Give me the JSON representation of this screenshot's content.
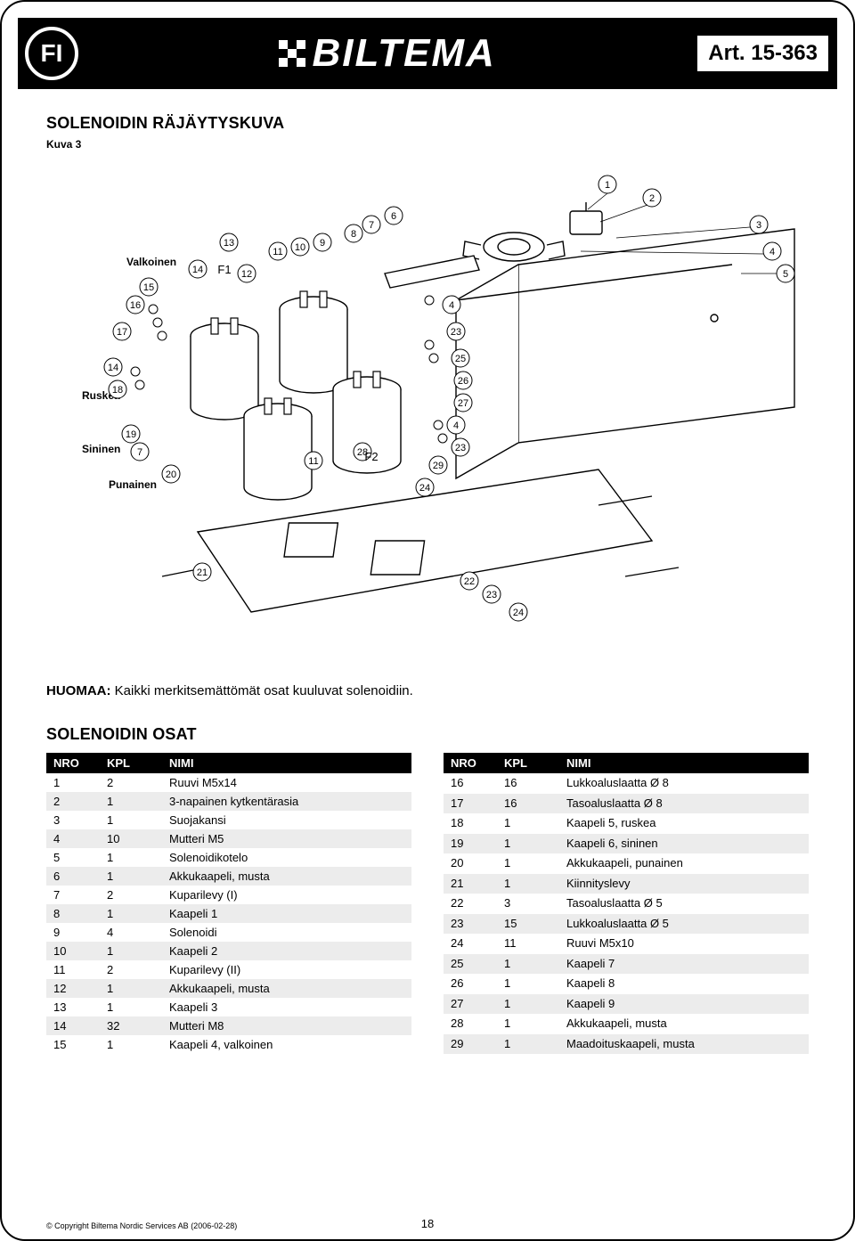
{
  "header": {
    "lang_code": "FI",
    "brand": "BILTEMA",
    "article": "Art. 15-363"
  },
  "section1": {
    "title": "SOLENOIDIN RÄJÄYTYSKUVA",
    "caption": "Kuva 3"
  },
  "wire_labels": {
    "valkoinen": "Valkoinen",
    "ruskea": "Ruskea",
    "sininen": "Sininen",
    "punainen": "Punainen"
  },
  "diagram": {
    "callouts": [
      "1",
      "2",
      "3",
      "4",
      "5",
      "6",
      "7",
      "8",
      "9",
      "10",
      "11",
      "12",
      "13",
      "14",
      "15",
      "16",
      "17",
      "18",
      "19",
      "20",
      "21",
      "22",
      "23",
      "24",
      "25",
      "26",
      "27",
      "28",
      "29",
      "F1",
      "F2"
    ],
    "style": {
      "stroke": "#000000",
      "stroke_width": 1.2,
      "fill": "#ffffff",
      "callout_fontsize": 11,
      "callout_radius": 10
    }
  },
  "note": {
    "prefix": "HUOMAA:",
    "text": "Kaikki merkitsemättömät osat kuuluvat solenoidiin."
  },
  "section2": {
    "title": "SOLENOIDIN OSAT"
  },
  "table_headers": {
    "nro": "NRO",
    "kpl": "KPL",
    "nimi": "NIMI"
  },
  "parts_left": [
    {
      "nro": "1",
      "kpl": "2",
      "nimi": "Ruuvi M5x14"
    },
    {
      "nro": "2",
      "kpl": "1",
      "nimi": "3-napainen kytkentärasia"
    },
    {
      "nro": "3",
      "kpl": "1",
      "nimi": "Suojakansi"
    },
    {
      "nro": "4",
      "kpl": "10",
      "nimi": "Mutteri M5"
    },
    {
      "nro": "5",
      "kpl": "1",
      "nimi": "Solenoidikotelo"
    },
    {
      "nro": "6",
      "kpl": "1",
      "nimi": "Akkukaapeli, musta"
    },
    {
      "nro": "7",
      "kpl": "2",
      "nimi": "Kuparilevy (I)"
    },
    {
      "nro": "8",
      "kpl": "1",
      "nimi": "Kaapeli 1"
    },
    {
      "nro": "9",
      "kpl": "4",
      "nimi": "Solenoidi"
    },
    {
      "nro": "10",
      "kpl": "1",
      "nimi": "Kaapeli 2"
    },
    {
      "nro": "11",
      "kpl": "2",
      "nimi": "Kuparilevy (II)"
    },
    {
      "nro": "12",
      "kpl": "1",
      "nimi": "Akkukaapeli, musta"
    },
    {
      "nro": "13",
      "kpl": "1",
      "nimi": "Kaapeli 3"
    },
    {
      "nro": "14",
      "kpl": "32",
      "nimi": "Mutteri M8"
    },
    {
      "nro": "15",
      "kpl": "1",
      "nimi": "Kaapeli 4, valkoinen"
    }
  ],
  "parts_right": [
    {
      "nro": "16",
      "kpl": "16",
      "nimi": "Lukkoaluslaatta Ø 8"
    },
    {
      "nro": "17",
      "kpl": "16",
      "nimi": "Tasoaluslaatta Ø 8"
    },
    {
      "nro": "18",
      "kpl": "1",
      "nimi": "Kaapeli 5, ruskea"
    },
    {
      "nro": "19",
      "kpl": "1",
      "nimi": "Kaapeli 6, sininen"
    },
    {
      "nro": "20",
      "kpl": "1",
      "nimi": "Akkukaapeli, punainen"
    },
    {
      "nro": "21",
      "kpl": "1",
      "nimi": "Kiinnityslevy"
    },
    {
      "nro": "22",
      "kpl": "3",
      "nimi": "Tasoaluslaatta Ø 5"
    },
    {
      "nro": "23",
      "kpl": "15",
      "nimi": "Lukkoaluslaatta Ø 5"
    },
    {
      "nro": "24",
      "kpl": "11",
      "nimi": "Ruuvi M5x10"
    },
    {
      "nro": "25",
      "kpl": "1",
      "nimi": "Kaapeli 7"
    },
    {
      "nro": "26",
      "kpl": "1",
      "nimi": "Kaapeli 8"
    },
    {
      "nro": "27",
      "kpl": "1",
      "nimi": "Kaapeli 9"
    },
    {
      "nro": "28",
      "kpl": "1",
      "nimi": "Akkukaapeli, musta"
    },
    {
      "nro": "29",
      "kpl": "1",
      "nimi": "Maadoituskaapeli, musta"
    }
  ],
  "footer": {
    "copyright": "© Copyright Biltema Nordic Services AB (2006-02-28)",
    "page": "18"
  },
  "colors": {
    "black": "#000000",
    "white": "#ffffff",
    "row_alt": "#ececec"
  },
  "typography": {
    "body_family": "Arial, Helvetica, sans-serif",
    "title_fontsize": 18,
    "table_fontsize": 13,
    "note_fontsize": 15
  }
}
